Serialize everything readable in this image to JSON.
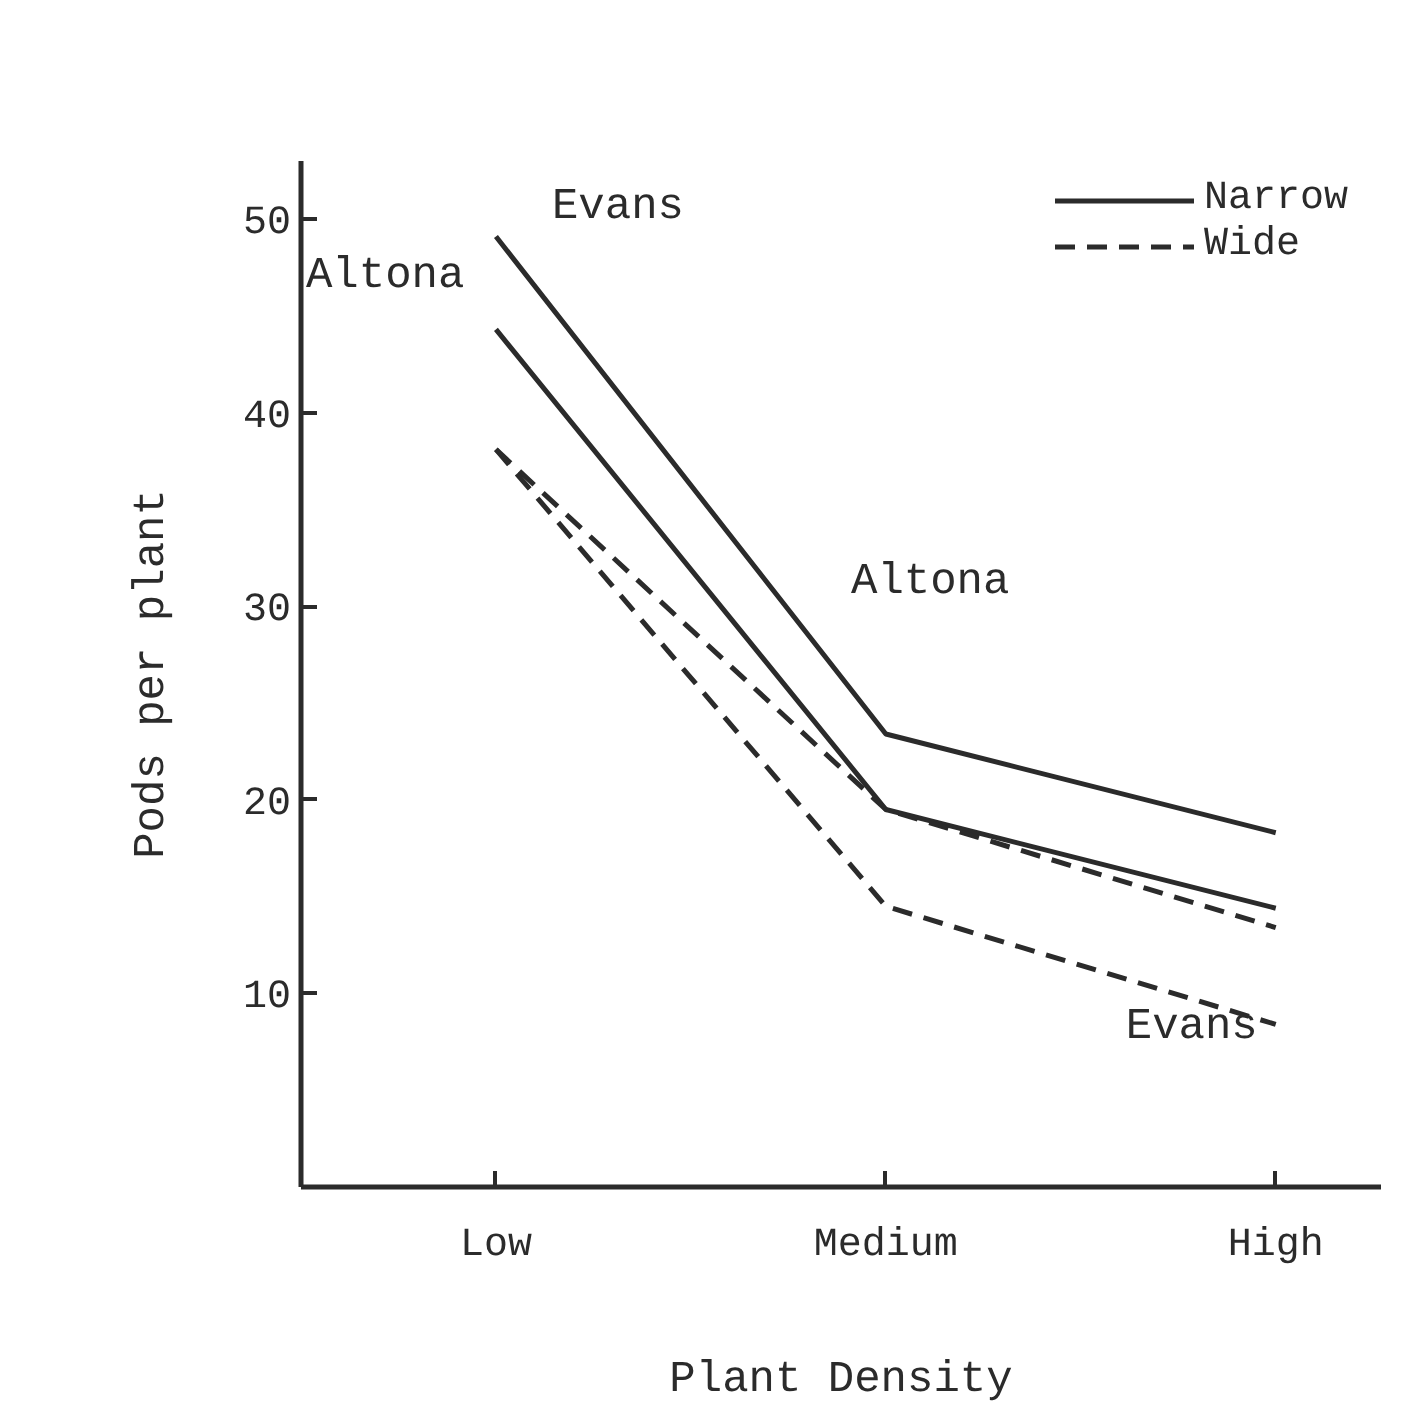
{
  "chart_data": {
    "type": "line",
    "xlabel": "Plant Density",
    "ylabel": "Pods per plant",
    "categories": [
      "Low",
      "Medium",
      "High"
    ],
    "ylim": [
      0,
      53
    ],
    "yticks": [
      10,
      20,
      30,
      40,
      50
    ],
    "grid": false,
    "legend": "top right",
    "marker": "none",
    "series": [
      {
        "name": "Narrow",
        "color": "#2b2b2b",
        "line_style": "solid",
        "values": [
          49.1,
          23.4,
          18.3
        ]
      },
      {
        "color": "#2b2b2b",
        "line_style": "solid",
        "values": [
          44.3,
          19.5,
          14.4
        ]
      },
      {
        "name": "Wide",
        "color": "#2b2b2b",
        "line_style": "dashed",
        "values": [
          38.1,
          19.5,
          13.4
        ]
      },
      {
        "color": "#2b2b2b",
        "line_style": "dashed",
        "values": [
          38.1,
          14.5,
          8.4
        ]
      }
    ],
    "annotations": [
      {
        "text": "Evans",
        "x": "Low",
        "y": 49.1
      },
      {
        "text": "Altona",
        "x": "Low",
        "y": 44.3
      },
      "Altona",
      {
        "text": "Evans",
        "x": "High",
        "y": 13.4
      }
    ]
  }
}
